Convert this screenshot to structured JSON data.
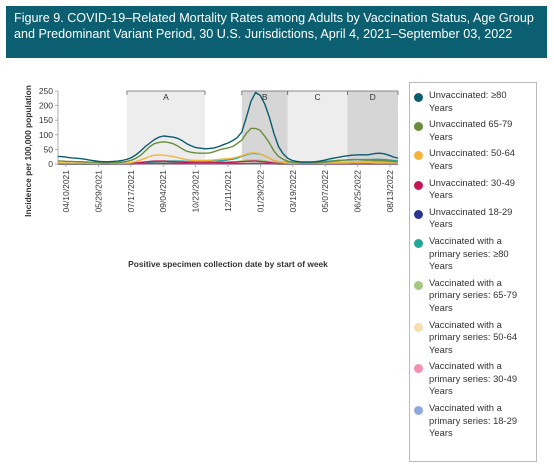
{
  "title": "Figure 9. COVID-19–Related Mortality Rates among Adults by Vaccination Status, Age Group and Predominant Variant Period, 30 U.S. Jurisdictions, April 4, 2021–September 03, 2022",
  "chart_data": {
    "type": "line",
    "ylabel": "Incidence per 100,000 population",
    "xlabel": "Positive specimen collection date by start of week",
    "ylim": [
      0,
      250
    ],
    "y_ticks": [
      0,
      50,
      100,
      150,
      200,
      250
    ],
    "x_tick_labels": [
      "04/10/2021",
      "05/29/2021",
      "07/17/2021",
      "09/04/2021",
      "10/23/2021",
      "12/11/2021",
      "01/29/2022",
      "03/19/2022",
      "05/07/2022",
      "06/25/2022",
      "08/13/2022"
    ],
    "periods": [
      {
        "label": "A",
        "start": 15,
        "end": 32
      },
      {
        "label": "B",
        "start": 40,
        "end": 50
      },
      {
        "label": "C",
        "start": 50,
        "end": 63
      },
      {
        "label": "D",
        "start": 63,
        "end": 74
      }
    ],
    "series": [
      {
        "name": "Unvaccinated: ≥80 Years",
        "color": "#0b5c6e",
        "values": [
          26,
          25,
          23,
          21,
          20,
          18,
          16,
          13,
          11,
          9,
          8,
          8,
          9,
          10,
          12,
          16,
          22,
          32,
          45,
          60,
          72,
          84,
          92,
          96,
          94,
          92,
          88,
          80,
          70,
          62,
          56,
          54,
          52,
          53,
          55,
          60,
          66,
          72,
          80,
          90,
          110,
          160,
          215,
          245,
          235,
          205,
          160,
          105,
          60,
          35,
          20,
          12,
          9,
          7,
          7,
          7,
          8,
          10,
          13,
          17,
          20,
          23,
          26,
          28,
          30,
          31,
          32,
          31,
          33,
          36,
          37,
          35,
          30,
          24,
          20
        ]
      },
      {
        "name": "Unvaccinated 65-79 Years",
        "color": "#6a8d3c",
        "values": [
          10,
          10,
          9,
          9,
          8,
          8,
          7,
          6,
          6,
          5,
          4,
          4,
          5,
          5,
          6,
          9,
          13,
          20,
          30,
          45,
          60,
          70,
          74,
          76,
          74,
          70,
          62,
          52,
          44,
          40,
          38,
          37,
          37,
          38,
          42,
          48,
          52,
          55,
          60,
          70,
          82,
          105,
          122,
          122,
          115,
          95,
          72,
          45,
          26,
          16,
          10,
          7,
          5,
          4,
          4,
          4,
          4,
          5,
          6,
          8,
          10,
          12,
          13,
          14,
          15,
          15,
          14,
          13,
          13,
          12,
          12,
          11,
          10,
          9,
          8
        ]
      },
      {
        "name": "Unvaccinated: 50-64 Years",
        "color": "#f6b33c",
        "values": [
          4,
          4,
          4,
          3,
          3,
          3,
          3,
          2,
          2,
          2,
          2,
          2,
          2,
          2,
          2,
          3,
          5,
          9,
          14,
          20,
          26,
          30,
          31,
          30,
          28,
          26,
          22,
          18,
          15,
          13,
          12,
          12,
          12,
          13,
          14,
          16,
          17,
          18,
          20,
          24,
          28,
          34,
          38,
          38,
          35,
          28,
          20,
          13,
          8,
          5,
          3,
          2,
          2,
          2,
          2,
          2,
          2,
          2,
          2,
          3,
          3,
          4,
          4,
          4,
          5,
          5,
          5,
          5,
          5,
          4,
          4,
          4,
          4,
          3,
          3
        ]
      },
      {
        "name": "Unvaccinated: 30-49 Years",
        "color": "#c2185b",
        "values": [
          1,
          1,
          1,
          1,
          1,
          1,
          1,
          1,
          1,
          1,
          1,
          1,
          1,
          1,
          1,
          1,
          2,
          3,
          5,
          7,
          9,
          10,
          10,
          10,
          9,
          8,
          7,
          6,
          5,
          4,
          4,
          4,
          4,
          4,
          4,
          5,
          5,
          5,
          6,
          7,
          8,
          9,
          10,
          10,
          9,
          7,
          5,
          3,
          2,
          1,
          1,
          1,
          1,
          1,
          1,
          1,
          1,
          1,
          1,
          1,
          1,
          1,
          1,
          1,
          1,
          1,
          1,
          1,
          1,
          1,
          1,
          1,
          1,
          1,
          1
        ]
      },
      {
        "name": "Unvaccinated 18-29 Years",
        "color": "#283593",
        "values": [
          0,
          0,
          0,
          0,
          0,
          0,
          0,
          0,
          0,
          0,
          0,
          0,
          0,
          0,
          0,
          0,
          0,
          1,
          1,
          1,
          2,
          2,
          2,
          2,
          2,
          2,
          1,
          1,
          1,
          1,
          1,
          1,
          1,
          1,
          1,
          1,
          1,
          1,
          1,
          1,
          1,
          1,
          2,
          2,
          2,
          1,
          1,
          1,
          0,
          0,
          0,
          0,
          0,
          0,
          0,
          0,
          0,
          0,
          0,
          0,
          0,
          0,
          0,
          0,
          0,
          0,
          0,
          0,
          0,
          0,
          0,
          0,
          0,
          0,
          0
        ]
      },
      {
        "name": "Vaccinated with a primary series: ≥80 Years",
        "color": "#26a69a",
        "values": [
          0,
          0,
          0,
          0,
          0,
          0,
          0,
          0,
          1,
          1,
          1,
          1,
          1,
          2,
          2,
          2,
          3,
          4,
          5,
          6,
          7,
          8,
          9,
          10,
          10,
          10,
          10,
          10,
          9,
          9,
          9,
          9,
          9,
          9,
          10,
          11,
          12,
          14,
          16,
          20,
          26,
          32,
          36,
          36,
          34,
          28,
          20,
          12,
          8,
          6,
          5,
          5,
          5,
          5,
          5,
          6,
          7,
          8,
          9,
          10,
          11,
          12,
          13,
          14,
          14,
          15,
          15,
          15,
          15,
          16,
          16,
          15,
          14,
          12,
          10
        ]
      },
      {
        "name": "Vaccinated with a primary series: 65-79 Years",
        "color": "#a5c882",
        "values": [
          0,
          0,
          0,
          0,
          0,
          0,
          0,
          0,
          0,
          0,
          0,
          0,
          1,
          1,
          1,
          1,
          2,
          2,
          3,
          3,
          4,
          4,
          5,
          5,
          5,
          5,
          5,
          5,
          5,
          5,
          5,
          5,
          5,
          5,
          5,
          6,
          6,
          7,
          8,
          9,
          11,
          13,
          14,
          14,
          13,
          11,
          8,
          6,
          4,
          3,
          3,
          3,
          3,
          3,
          3,
          3,
          4,
          4,
          5,
          5,
          6,
          6,
          6,
          7,
          7,
          7,
          7,
          7,
          7,
          7,
          7,
          7,
          6,
          6,
          5
        ]
      },
      {
        "name": "Vaccinated with a primary series: 50-64 Years",
        "color": "#f5deb0",
        "values": [
          0,
          0,
          0,
          0,
          0,
          0,
          0,
          0,
          0,
          0,
          0,
          0,
          0,
          0,
          0,
          0,
          1,
          1,
          1,
          1,
          1,
          1,
          2,
          2,
          2,
          2,
          2,
          2,
          2,
          2,
          2,
          2,
          2,
          2,
          2,
          2,
          2,
          2,
          3,
          3,
          3,
          4,
          4,
          4,
          4,
          3,
          3,
          2,
          1,
          1,
          1,
          1,
          1,
          1,
          1,
          1,
          1,
          1,
          1,
          1,
          1,
          1,
          1,
          1,
          1,
          1,
          1,
          1,
          1,
          1,
          1,
          1,
          1,
          1,
          1
        ]
      },
      {
        "name": "Vaccinated with a primary series: 30-49 Years",
        "color": "#f48fb1",
        "values": [
          0,
          0,
          0,
          0,
          0,
          0,
          0,
          0,
          0,
          0,
          0,
          0,
          0,
          0,
          0,
          0,
          0,
          0,
          0,
          0,
          0,
          0,
          0,
          0,
          0,
          0,
          0,
          0,
          0,
          0,
          0,
          0,
          0,
          0,
          0,
          0,
          0,
          0,
          0,
          0,
          0,
          1,
          1,
          1,
          1,
          1,
          0,
          0,
          0,
          0,
          0,
          0,
          0,
          0,
          0,
          0,
          0,
          0,
          0,
          0,
          0,
          0,
          0,
          0,
          0,
          0,
          0,
          0,
          0,
          0,
          0,
          0,
          0,
          0,
          0
        ]
      },
      {
        "name": "Vaccinated with a primary series: 18-29 Years",
        "color": "#90a8e0",
        "values": [
          0,
          0,
          0,
          0,
          0,
          0,
          0,
          0,
          0,
          0,
          0,
          0,
          0,
          0,
          0,
          0,
          0,
          0,
          0,
          0,
          0,
          0,
          0,
          0,
          0,
          0,
          0,
          0,
          0,
          0,
          0,
          0,
          0,
          0,
          0,
          0,
          0,
          0,
          0,
          0,
          0,
          0,
          0,
          0,
          0,
          0,
          0,
          0,
          0,
          0,
          0,
          0,
          0,
          0,
          0,
          0,
          0,
          0,
          0,
          0,
          0,
          0,
          0,
          0,
          0,
          0,
          0,
          0,
          0,
          0,
          0,
          0,
          0,
          0,
          0
        ]
      }
    ]
  }
}
